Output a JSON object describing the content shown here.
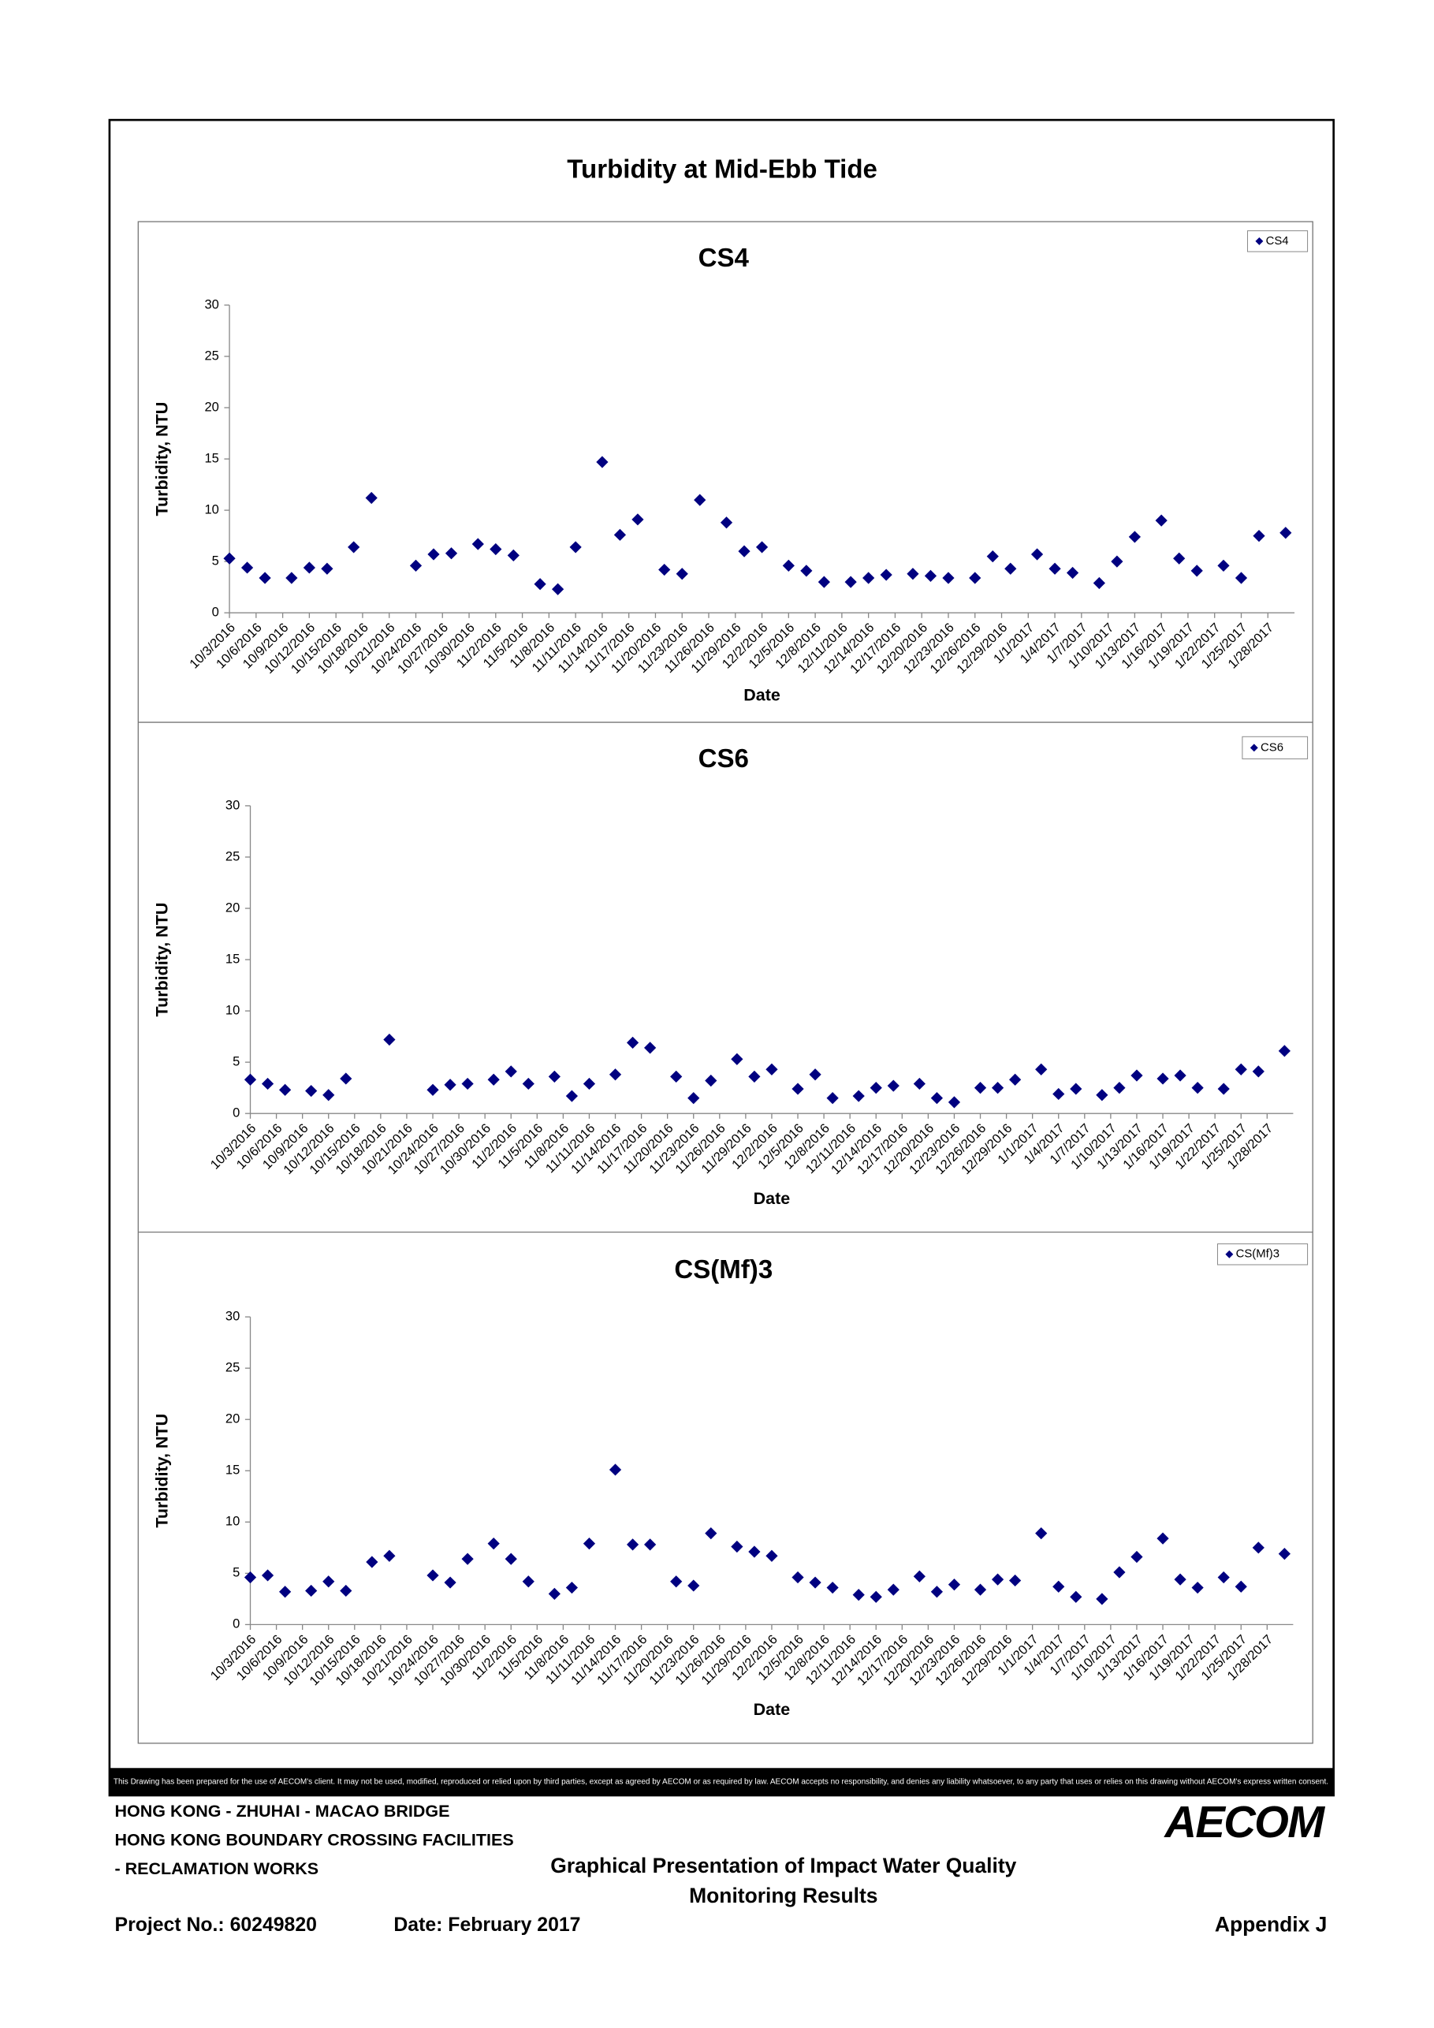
{
  "title": "Turbidity at Mid-Ebb Tide",
  "chart_data": [
    {
      "type": "scatter",
      "title": "CS4",
      "xlabel": "Date",
      "ylabel": "Turbidity, NTU",
      "x": [
        "10/3/2016",
        "10/5/2016",
        "10/7/2016",
        "10/10/2016",
        "10/12/2016",
        "10/14/2016",
        "10/17/2016",
        "10/19/2016",
        "10/24/2016",
        "10/26/2016",
        "10/28/2016",
        "10/31/2016",
        "11/2/2016",
        "11/4/2016",
        "11/7/2016",
        "11/9/2016",
        "11/11/2016",
        "11/14/2016",
        "11/16/2016",
        "11/18/2016",
        "11/21/2016",
        "11/23/2016",
        "11/25/2016",
        "11/28/2016",
        "11/30/2016",
        "12/2/2016",
        "12/5/2016",
        "12/7/2016",
        "12/9/2016",
        "12/12/2016",
        "12/14/2016",
        "12/16/2016",
        "12/19/2016",
        "12/21/2016",
        "12/23/2016",
        "12/26/2016",
        "12/28/2016",
        "12/30/2016",
        "1/2/2017",
        "1/4/2017",
        "1/6/2017",
        "1/9/2017",
        "1/11/2017",
        "1/13/2017",
        "1/16/2017",
        "1/18/2017",
        "1/20/2017",
        "1/23/2017",
        "1/25/2017",
        "1/27/2017",
        "1/30/2017"
      ],
      "series": [
        {
          "name": "CS4",
          "color": "#000080",
          "values": [
            5.3,
            4.4,
            3.4,
            3.4,
            4.4,
            4.3,
            6.4,
            11.2,
            4.6,
            5.7,
            5.8,
            6.7,
            6.2,
            5.6,
            2.8,
            2.3,
            6.4,
            14.7,
            7.6,
            9.1,
            4.2,
            3.8,
            11.0,
            8.8,
            6.0,
            6.4,
            4.6,
            4.1,
            3.0,
            3.0,
            3.4,
            3.7,
            3.8,
            3.6,
            3.4,
            3.4,
            5.5,
            4.3,
            5.7,
            4.3,
            3.9,
            2.9,
            5.0,
            7.4,
            9.0,
            5.3,
            4.1,
            4.6,
            3.4,
            7.5,
            7.8
          ]
        }
      ],
      "xlim": [
        "10/3/2016",
        "1/31/2017"
      ],
      "xticks": [
        "10/3/2016",
        "10/6/2016",
        "10/9/2016",
        "10/12/2016",
        "10/15/2016",
        "10/18/2016",
        "10/21/2016",
        "10/24/2016",
        "10/27/2016",
        "10/30/2016",
        "11/2/2016",
        "11/5/2016",
        "11/8/2016",
        "11/11/2016",
        "11/14/2016",
        "11/17/2016",
        "11/20/2016",
        "11/23/2016",
        "11/26/2016",
        "11/29/2016",
        "12/2/2016",
        "12/5/2016",
        "12/8/2016",
        "12/11/2016",
        "12/14/2016",
        "12/17/2016",
        "12/20/2016",
        "12/23/2016",
        "12/26/2016",
        "12/29/2016",
        "1/1/2017",
        "1/4/2017",
        "1/7/2017",
        "1/10/2017",
        "1/13/2017",
        "1/16/2017",
        "1/19/2017",
        "1/22/2017",
        "1/25/2017",
        "1/28/2017"
      ],
      "ylim": [
        0,
        30
      ],
      "yticks": [
        0,
        5,
        10,
        15,
        20,
        25,
        30
      ],
      "legend": "top-right",
      "grid": false
    },
    {
      "type": "scatter",
      "title": "CS6",
      "xlabel": "Date",
      "ylabel": "Turbidity, NTU",
      "x": [
        "10/3/2016",
        "10/5/2016",
        "10/7/2016",
        "10/10/2016",
        "10/12/2016",
        "10/14/2016",
        "10/19/2016",
        "10/24/2016",
        "10/26/2016",
        "10/28/2016",
        "10/31/2016",
        "11/2/2016",
        "11/4/2016",
        "11/7/2016",
        "11/9/2016",
        "11/11/2016",
        "11/14/2016",
        "11/16/2016",
        "11/18/2016",
        "11/21/2016",
        "11/23/2016",
        "11/25/2016",
        "11/28/2016",
        "11/30/2016",
        "12/2/2016",
        "12/5/2016",
        "12/7/2016",
        "12/9/2016",
        "12/12/2016",
        "12/14/2016",
        "12/16/2016",
        "12/19/2016",
        "12/21/2016",
        "12/23/2016",
        "12/26/2016",
        "12/28/2016",
        "12/30/2016",
        "1/2/2017",
        "1/4/2017",
        "1/6/2017",
        "1/9/2017",
        "1/11/2017",
        "1/13/2017",
        "1/16/2017",
        "1/18/2017",
        "1/20/2017",
        "1/23/2017",
        "1/25/2017",
        "1/27/2017",
        "1/30/2017"
      ],
      "series": [
        {
          "name": "CS6",
          "color": "#000080",
          "values": [
            3.3,
            2.9,
            2.3,
            2.2,
            1.8,
            3.4,
            7.2,
            2.3,
            2.8,
            2.9,
            3.3,
            4.1,
            2.9,
            3.6,
            1.7,
            2.9,
            3.8,
            6.9,
            6.4,
            3.6,
            1.5,
            3.2,
            5.3,
            3.6,
            4.3,
            2.4,
            3.8,
            1.5,
            1.7,
            2.5,
            2.7,
            2.9,
            1.5,
            1.1,
            2.5,
            2.5,
            3.3,
            4.3,
            1.9,
            2.4,
            1.8,
            2.5,
            3.7,
            3.4,
            3.7,
            2.5,
            2.4,
            4.3,
            4.1,
            6.1
          ]
        }
      ],
      "xlim": [
        "10/3/2016",
        "1/31/2017"
      ],
      "xticks": [
        "10/3/2016",
        "10/6/2016",
        "10/9/2016",
        "10/12/2016",
        "10/15/2016",
        "10/18/2016",
        "10/21/2016",
        "10/24/2016",
        "10/27/2016",
        "10/30/2016",
        "11/2/2016",
        "11/5/2016",
        "11/8/2016",
        "11/11/2016",
        "11/14/2016",
        "11/17/2016",
        "11/20/2016",
        "11/23/2016",
        "11/26/2016",
        "11/29/2016",
        "12/2/2016",
        "12/5/2016",
        "12/8/2016",
        "12/11/2016",
        "12/14/2016",
        "12/17/2016",
        "12/20/2016",
        "12/23/2016",
        "12/26/2016",
        "12/29/2016",
        "1/1/2017",
        "1/4/2017",
        "1/7/2017",
        "1/10/2017",
        "1/13/2017",
        "1/16/2017",
        "1/19/2017",
        "1/22/2017",
        "1/25/2017",
        "1/28/2017"
      ],
      "ylim": [
        0,
        30
      ],
      "yticks": [
        0,
        5,
        10,
        15,
        20,
        25,
        30
      ],
      "legend": "top-right",
      "grid": false
    },
    {
      "type": "scatter",
      "title": "CS(Mf)3",
      "xlabel": "Date",
      "ylabel": "Turbidity, NTU",
      "x": [
        "10/3/2016",
        "10/5/2016",
        "10/7/2016",
        "10/10/2016",
        "10/12/2016",
        "10/14/2016",
        "10/17/2016",
        "10/19/2016",
        "10/24/2016",
        "10/26/2016",
        "10/28/2016",
        "10/31/2016",
        "11/2/2016",
        "11/4/2016",
        "11/7/2016",
        "11/9/2016",
        "11/11/2016",
        "11/14/2016",
        "11/16/2016",
        "11/18/2016",
        "11/21/2016",
        "11/23/2016",
        "11/25/2016",
        "11/28/2016",
        "11/30/2016",
        "12/2/2016",
        "12/5/2016",
        "12/7/2016",
        "12/9/2016",
        "12/12/2016",
        "12/14/2016",
        "12/16/2016",
        "12/19/2016",
        "12/21/2016",
        "12/23/2016",
        "12/26/2016",
        "12/28/2016",
        "12/30/2016",
        "1/2/2017",
        "1/4/2017",
        "1/6/2017",
        "1/9/2017",
        "1/11/2017",
        "1/13/2017",
        "1/16/2017",
        "1/18/2017",
        "1/20/2017",
        "1/23/2017",
        "1/25/2017",
        "1/27/2017",
        "1/30/2017"
      ],
      "series": [
        {
          "name": "CS(Mf)3",
          "color": "#000080",
          "values": [
            4.6,
            4.8,
            3.2,
            3.3,
            4.2,
            3.3,
            6.1,
            6.7,
            4.8,
            4.1,
            6.4,
            7.9,
            6.4,
            4.2,
            3.0,
            3.6,
            7.9,
            15.1,
            7.8,
            7.8,
            4.2,
            3.8,
            8.9,
            7.6,
            7.1,
            6.7,
            4.6,
            4.1,
            3.6,
            2.9,
            2.7,
            3.4,
            4.7,
            3.2,
            3.9,
            3.4,
            4.4,
            4.3,
            8.9,
            3.7,
            2.7,
            2.5,
            5.1,
            6.6,
            8.4,
            4.4,
            3.6,
            4.6,
            3.7,
            7.5,
            6.9
          ]
        }
      ],
      "xlim": [
        "10/3/2016",
        "1/31/2017"
      ],
      "xticks": [
        "10/3/2016",
        "10/6/2016",
        "10/9/2016",
        "10/12/2016",
        "10/15/2016",
        "10/18/2016",
        "10/21/2016",
        "10/24/2016",
        "10/27/2016",
        "10/30/2016",
        "11/2/2016",
        "11/5/2016",
        "11/8/2016",
        "11/11/2016",
        "11/14/2016",
        "11/17/2016",
        "11/20/2016",
        "11/23/2016",
        "11/26/2016",
        "11/29/2016",
        "12/2/2016",
        "12/5/2016",
        "12/8/2016",
        "12/11/2016",
        "12/14/2016",
        "12/17/2016",
        "12/20/2016",
        "12/23/2016",
        "12/26/2016",
        "12/29/2016",
        "1/1/2017",
        "1/4/2017",
        "1/7/2017",
        "1/10/2017",
        "1/13/2017",
        "1/16/2017",
        "1/19/2017",
        "1/22/2017",
        "1/25/2017",
        "1/28/2017"
      ],
      "ylim": [
        0,
        30
      ],
      "yticks": [
        0,
        5,
        10,
        15,
        20,
        25,
        30
      ],
      "legend": "top-right",
      "grid": false
    }
  ],
  "disclaimer": "This Drawing has been prepared for the use of AECOM's client. It may not be used, modified, reproduced or relied upon by third parties, except as agreed by AECOM or as required by law. AECOM accepts no responsibility, and denies any liability whatsoever, to any party that uses or relies on this drawing without AECOM's express written consent.",
  "footer": {
    "project_lines": [
      "HONG KONG - ZHUHAI - MACAO BRIDGE",
      "HONG KONG BOUNDARY CROSSING FACILITIES",
      "- RECLAMATION WORKS"
    ],
    "drawing_title": [
      "Graphical Presentation of Impact Water Quality",
      "Monitoring Results"
    ],
    "project_no": "Project No.: 60249820",
    "date": "Date: February 2017",
    "appendix": "Appendix J",
    "logo": "AECOM"
  }
}
